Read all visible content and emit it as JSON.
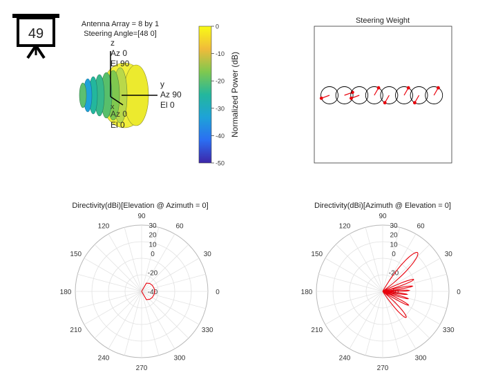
{
  "badge": {
    "number": "49",
    "icon": "presentation-board-icon"
  },
  "array_3d": {
    "info_line1": "Antenna Array = 8 by 1",
    "info_line2": "Steering Angle=[48 0]",
    "axis_z": {
      "name": "z",
      "az": "Az 0",
      "el": "El 90"
    },
    "axis_y": {
      "name": "y",
      "az": "Az 90",
      "el": "El 0"
    },
    "axis_x": {
      "name": "x",
      "az": "Az 0",
      "el": "El 0"
    }
  },
  "colorbar": {
    "label": "Normalized Power (dB)",
    "ticks": [
      "0",
      "-10",
      "-20",
      "-30",
      "-40",
      "-50"
    ],
    "range": [
      -50,
      0
    ],
    "colors": [
      "#3d26a8",
      "#2b6ef2",
      "#1ea2d8",
      "#23b79d",
      "#7fc84f",
      "#f0bb3a",
      "#f9fb15"
    ]
  },
  "steering_weight": {
    "title": "Steering Weight",
    "element_count": 8,
    "phase_deg": [
      200,
      20,
      200,
      60,
      240,
      60,
      240,
      60
    ],
    "marker_color": "#e8000b"
  },
  "chart_data": [
    {
      "type": "polar",
      "title": "Directivity(dBi)[Elevation @ Azimuth = 0]",
      "angle_ticks": [
        "0",
        "30",
        "60",
        "90",
        "120",
        "150",
        "180",
        "210",
        "240",
        "270",
        "300",
        "330"
      ],
      "radial_ticks": [
        "30",
        "20",
        "10",
        "0",
        "-20",
        "-40"
      ],
      "rlim": [
        -40,
        30
      ],
      "grid": true,
      "series": [
        {
          "color": "#e8000b",
          "theta_deg": [
            90,
            60,
            45,
            30,
            15,
            0,
            -15,
            -30,
            -45,
            -60,
            -90
          ],
          "r_dbi": [
            -40,
            -30,
            -28,
            -27,
            -26.5,
            -26,
            -26.5,
            -27,
            -28,
            -30,
            -40
          ]
        }
      ]
    },
    {
      "type": "polar",
      "title": "Directivity(dBi)[Azimuth @ Elevation = 0]",
      "angle_ticks": [
        "0",
        "30",
        "60",
        "90",
        "120",
        "150",
        "180",
        "210",
        "240",
        "270",
        "300",
        "330"
      ],
      "radial_ticks": [
        "30",
        "20",
        "10",
        "0",
        "-20",
        "-40"
      ],
      "rlim": [
        -40,
        30
      ],
      "grid": true,
      "series": [
        {
          "color": "#e8000b",
          "lobes": [
            {
              "center_deg": 48,
              "half_width_deg": 12,
              "peak_dbi": 15
            },
            {
              "center_deg": 21,
              "half_width_deg": 6,
              "peak_dbi": -5
            },
            {
              "center_deg": 10,
              "half_width_deg": 4,
              "peak_dbi": -8
            },
            {
              "center_deg": 2,
              "half_width_deg": 3.5,
              "peak_dbi": -12
            },
            {
              "center_deg": -7,
              "half_width_deg": 3.5,
              "peak_dbi": -14
            },
            {
              "center_deg": -16,
              "half_width_deg": 4,
              "peak_dbi": -12
            },
            {
              "center_deg": -28,
              "half_width_deg": 5,
              "peak_dbi": -9
            },
            {
              "center_deg": -48,
              "half_width_deg": 9,
              "peak_dbi": -3
            }
          ],
          "floor_dbi": -40
        }
      ]
    }
  ]
}
